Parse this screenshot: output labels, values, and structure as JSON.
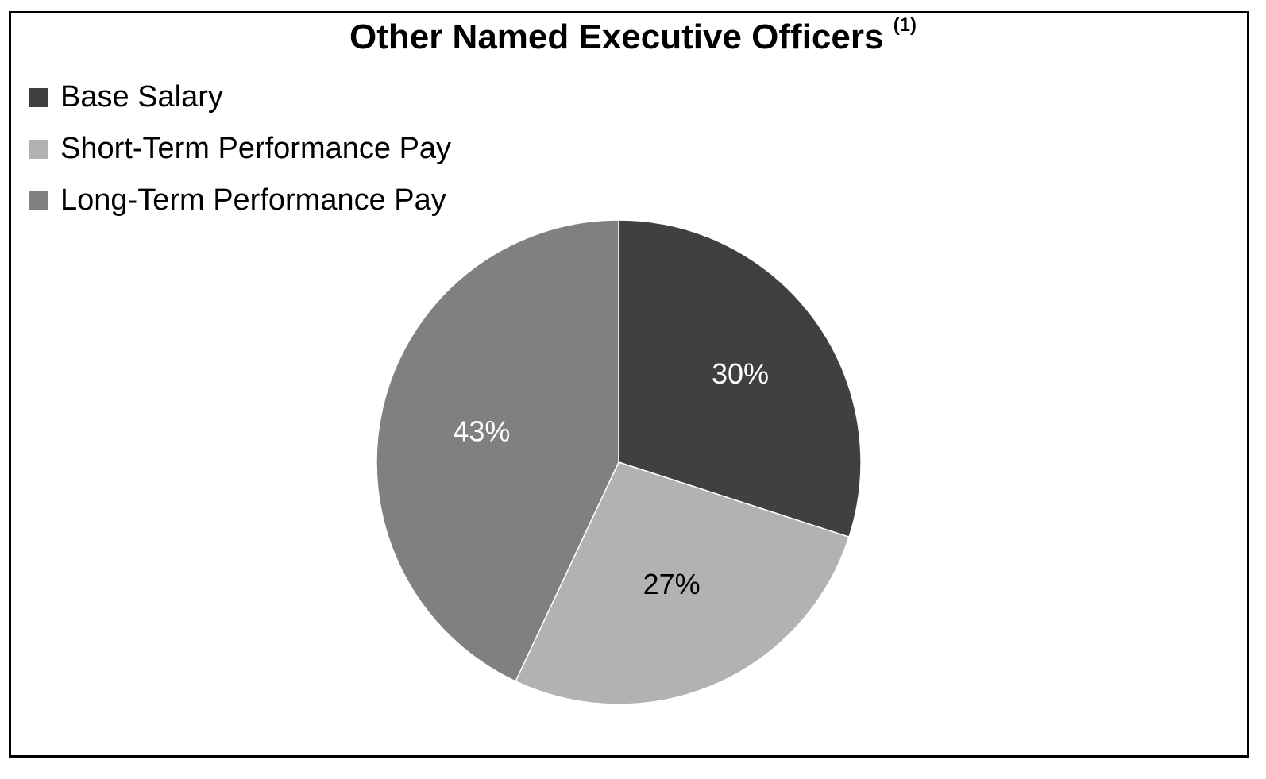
{
  "chart_data": {
    "type": "pie",
    "title": "Other Named Executive Officers",
    "title_footnote": "(1)",
    "categories": [
      "Base Salary",
      "Short-Term Performance Pay",
      "Long-Term Performance Pay"
    ],
    "values": [
      30,
      27,
      43
    ],
    "labels": [
      "30%",
      "27%",
      "43%"
    ],
    "colors": [
      "#404040",
      "#b2b2b2",
      "#808080"
    ],
    "label_colors": [
      "#ffffff",
      "#000000",
      "#ffffff"
    ],
    "legend_position": "top-left",
    "start_angle_deg": 0,
    "direction": "clockwise"
  },
  "legend": {
    "items": [
      {
        "label": "Base Salary",
        "color": "#404040"
      },
      {
        "label": "Short-Term Performance Pay",
        "color": "#b2b2b2"
      },
      {
        "label": "Long-Term Performance Pay",
        "color": "#808080"
      }
    ]
  }
}
